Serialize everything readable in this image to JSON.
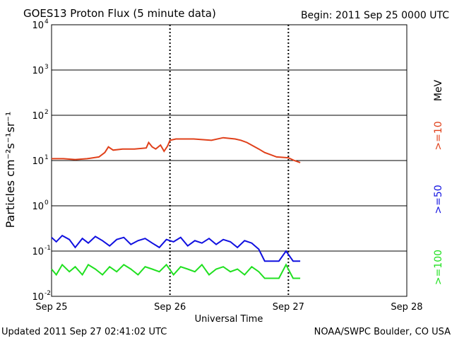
{
  "header": {
    "title": "GOES13 Proton Flux (5 minute data)",
    "begin": "Begin: 2011 Sep 25 0000 UTC"
  },
  "footer": {
    "updated": "Updated 2011 Sep 27 02:41:02 UTC",
    "credit": "NOAA/SWPC Boulder, CO USA"
  },
  "chart_data": {
    "type": "line",
    "title": "GOES13 Proton Flux (5 minute data)",
    "xlabel": "Universal Time",
    "ylabel": "Particles cm⁻²s⁻¹sr⁻¹",
    "yscale": "log",
    "ylim": [
      0.01,
      10000
    ],
    "y_ticks": [
      {
        "value": 0.01,
        "base": "10",
        "exp": "-2"
      },
      {
        "value": 0.1,
        "base": "10",
        "exp": "-1"
      },
      {
        "value": 1,
        "base": "10",
        "exp": "0"
      },
      {
        "value": 10,
        "base": "10",
        "exp": "1"
      },
      {
        "value": 100,
        "base": "10",
        "exp": "2"
      },
      {
        "value": 1000,
        "base": "10",
        "exp": "3"
      },
      {
        "value": 10000,
        "base": "10",
        "exp": "4"
      }
    ],
    "x_ticks": [
      "Sep 25",
      "Sep 26",
      "Sep 27",
      "Sep 28"
    ],
    "xlim_days": [
      0,
      3
    ],
    "grid": true,
    "threshold": {
      "value": 10,
      "style": "dashed"
    },
    "right_labels": {
      "unit": "MeV",
      "p10": ">=10",
      "p50": ">=50",
      "p100": ">=100"
    },
    "colors": {
      "p10": "#e0401a",
      "p50": "#1010e0",
      "p100": "#20e020"
    },
    "series": [
      {
        "name": ">=10",
        "color": "#e0401a",
        "x": [
          0.0,
          0.1,
          0.2,
          0.3,
          0.4,
          0.45,
          0.48,
          0.52,
          0.6,
          0.7,
          0.8,
          0.82,
          0.85,
          0.88,
          0.92,
          0.95,
          0.98,
          1.0,
          1.05,
          1.2,
          1.35,
          1.45,
          1.55,
          1.6,
          1.65,
          1.75,
          1.8,
          1.9,
          2.0,
          2.05,
          2.1
        ],
        "values": [
          11,
          11,
          10.5,
          11,
          12,
          15,
          20,
          17,
          18,
          18,
          19,
          25,
          20,
          18,
          22,
          16,
          21,
          28,
          30,
          30,
          28,
          32,
          30,
          28,
          25,
          18,
          15,
          12,
          11.5,
          10,
          9
        ]
      },
      {
        "name": ">=50",
        "color": "#1010e0",
        "x": [
          0.0,
          0.04,
          0.09,
          0.15,
          0.2,
          0.26,
          0.31,
          0.37,
          0.43,
          0.49,
          0.55,
          0.61,
          0.67,
          0.73,
          0.79,
          0.85,
          0.91,
          0.97,
          1.03,
          1.09,
          1.15,
          1.21,
          1.27,
          1.33,
          1.39,
          1.45,
          1.51,
          1.57,
          1.63,
          1.69,
          1.75,
          1.8,
          1.86,
          1.92,
          1.98,
          2.04,
          2.1
        ],
        "values": [
          0.2,
          0.16,
          0.22,
          0.18,
          0.12,
          0.19,
          0.15,
          0.21,
          0.17,
          0.13,
          0.18,
          0.2,
          0.14,
          0.17,
          0.19,
          0.15,
          0.12,
          0.18,
          0.16,
          0.2,
          0.13,
          0.17,
          0.15,
          0.19,
          0.14,
          0.18,
          0.16,
          0.12,
          0.17,
          0.15,
          0.11,
          0.06,
          0.06,
          0.06,
          0.1,
          0.06,
          0.06
        ]
      },
      {
        "name": ">=100",
        "color": "#20e020",
        "x": [
          0.0,
          0.04,
          0.09,
          0.15,
          0.2,
          0.26,
          0.31,
          0.37,
          0.43,
          0.49,
          0.55,
          0.61,
          0.67,
          0.73,
          0.79,
          0.85,
          0.91,
          0.97,
          1.03,
          1.09,
          1.15,
          1.21,
          1.27,
          1.33,
          1.39,
          1.45,
          1.51,
          1.57,
          1.63,
          1.69,
          1.75,
          1.8,
          1.86,
          1.92,
          1.98,
          2.04,
          2.1
        ],
        "values": [
          0.04,
          0.03,
          0.05,
          0.035,
          0.045,
          0.03,
          0.05,
          0.04,
          0.03,
          0.045,
          0.035,
          0.05,
          0.04,
          0.03,
          0.045,
          0.04,
          0.035,
          0.05,
          0.03,
          0.045,
          0.04,
          0.035,
          0.05,
          0.03,
          0.04,
          0.045,
          0.035,
          0.04,
          0.03,
          0.045,
          0.035,
          0.025,
          0.025,
          0.025,
          0.05,
          0.025,
          0.025
        ]
      }
    ]
  }
}
